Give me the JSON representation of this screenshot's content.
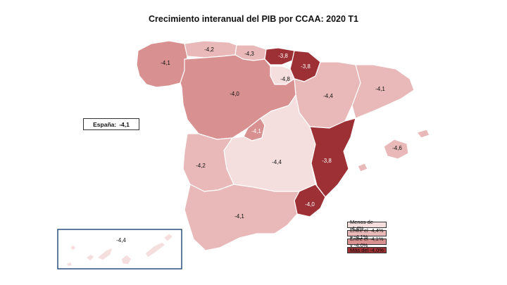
{
  "title": "Crecimiento interanual del PIB por CCAA: 2020 T1",
  "national": {
    "label": "España:",
    "value": "-4,1"
  },
  "colors": {
    "bin1": "#f5dfde",
    "bin2": "#e8b9b8",
    "bin3": "#d89090",
    "bin4": "#9c3034",
    "inset_border": "#2b4f7e"
  },
  "legend": [
    {
      "label": "Menos de -4,4%",
      "color": "#f5dfde"
    },
    {
      "label": "Entre el -4,4% y -4,1%",
      "color": "#e8b9b8"
    },
    {
      "label": "Entre el -4,1% y -4,0%",
      "color": "#d89090"
    },
    {
      "label": "Más del -4,0%",
      "color": "#9c3034"
    }
  ],
  "regions": {
    "galicia": "-4,1",
    "asturias": "-4,2",
    "cantabria": "-4,3",
    "pais_vasco": "-3,8",
    "navarra": "-3,8",
    "la_rioja": "-4,8",
    "aragon": "-4,4",
    "cataluna": "-4,1",
    "castilla_leon": "-4,0",
    "madrid": "-4,1",
    "castilla_la_mancha": "-4,4",
    "extremadura": "-4,2",
    "valencia": "-3,8",
    "baleares": "-4,6",
    "andalucia": "-4,1",
    "murcia": "-4,0",
    "canarias": "-4,4"
  }
}
